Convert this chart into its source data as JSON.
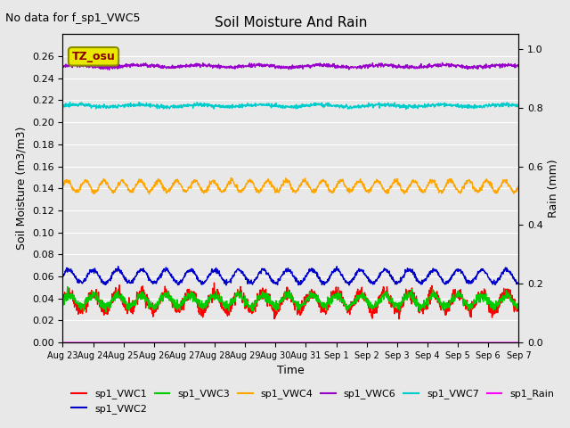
{
  "title": "Soil Moisture And Rain",
  "no_data_text": "No data for f_sp1_VWC5",
  "xlabel": "Time",
  "ylabel_left": "Soil Moisture (m3/m3)",
  "ylabel_right": "Rain (mm)",
  "annotation_text": "TZ_osu",
  "ylim_left": [
    0.0,
    0.28
  ],
  "ylim_right": [
    0.0,
    1.05
  ],
  "background_color": "#e8e8e8",
  "series": {
    "sp1_VWC1": {
      "color": "#ff0000",
      "base": 0.037,
      "amp": 0.008,
      "period": 0.8,
      "noise": 0.003
    },
    "sp1_VWC2": {
      "color": "#0000cc",
      "base": 0.06,
      "amp": 0.006,
      "period": 0.8,
      "noise": 0.001
    },
    "sp1_VWC3": {
      "color": "#00cc00",
      "base": 0.038,
      "amp": 0.005,
      "period": 0.8,
      "noise": 0.002
    },
    "sp1_VWC4": {
      "color": "#ffa500",
      "base": 0.142,
      "amp": 0.005,
      "period": 0.6,
      "noise": 0.001
    },
    "sp1_VWC6": {
      "color": "#9900cc",
      "base": 0.251,
      "amp": 0.001,
      "period": 2.0,
      "noise": 0.0008
    },
    "sp1_VWC7": {
      "color": "#00cccc",
      "base": 0.215,
      "amp": 0.001,
      "period": 2.0,
      "noise": 0.0008
    },
    "sp1_Rain": {
      "color": "#ff00ff",
      "base": 0.0,
      "amp": 0.0,
      "period": 1.0,
      "noise": 0.0
    }
  },
  "xtick_labels": [
    "Aug 23",
    "Aug 24",
    "Aug 25",
    "Aug 26",
    "Aug 27",
    "Aug 28",
    "Aug 29",
    "Aug 30",
    "Aug 31",
    "Sep 1",
    "Sep 2",
    "Sep 3",
    "Sep 4",
    "Sep 5",
    "Sep 6",
    "Sep 7"
  ],
  "n_days": 15,
  "n_points": 1440,
  "legend_order": [
    "sp1_VWC1",
    "sp1_VWC2",
    "sp1_VWC3",
    "sp1_VWC4",
    "sp1_VWC6",
    "sp1_VWC7",
    "sp1_Rain"
  ]
}
